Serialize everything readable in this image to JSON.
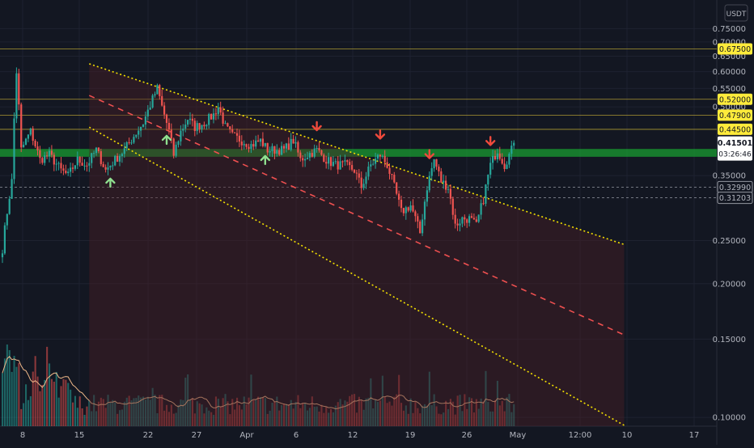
{
  "currency_label": "USDT",
  "colors": {
    "background": "#131722",
    "grid": "#1e2230",
    "axis_text": "#b2b5be",
    "level_line": "#c9b036",
    "level_tag": "#ffeb3b",
    "support_zone": "#1a9c32",
    "support_tag": "#5fd45f",
    "bull": "#26a69a",
    "bear": "#ef5350",
    "channel_fill": "#4a1e25",
    "channel_line": "#f5e200",
    "mid_line": "#f05050",
    "arrow_up": "#8fe08f",
    "arrow_down": "#f04a3c",
    "volume_ma": "#f0b98a",
    "price_tag": "#ffffff"
  },
  "chart_data": {
    "type": "candlestick",
    "y_axis": {
      "ticks": [
        "0.75000",
        "0.70000",
        "0.65000",
        "0.60000",
        "0.55000",
        "0.50000",
        "0.35000",
        "0.25000",
        "0.20000",
        "0.15000",
        "0.10000"
      ],
      "scale": "log",
      "range": [
        0.098,
        0.81
      ]
    },
    "x_axis": {
      "ticks": [
        "8",
        "15",
        "22",
        "27",
        "Apr",
        "6",
        "12",
        "19",
        "26",
        "May",
        "12:00",
        "10",
        "17"
      ]
    },
    "horizontal_levels": [
      {
        "label": "0.67500",
        "value": 0.675
      },
      {
        "label": "0.52000",
        "value": 0.52
      },
      {
        "label": "0.47900",
        "value": 0.479
      },
      {
        "label": "0.44500",
        "value": 0.445
      }
    ],
    "dashed_levels": [
      {
        "label": "0.32990",
        "value": 0.3299
      },
      {
        "label": "0.31203",
        "value": 0.31203
      }
    ],
    "support_zone": {
      "label": "0.39687",
      "value": 0.39687,
      "upper": 0.402,
      "lower": 0.386
    },
    "current_price": {
      "label": "0.41501",
      "value": 0.41501,
      "countdown": "03:26:46"
    },
    "close_path": [
      [
        0,
        0.24
      ],
      [
        4,
        0.34
      ],
      [
        6,
        0.6
      ],
      [
        8,
        0.4
      ],
      [
        12,
        0.44
      ],
      [
        16,
        0.38
      ],
      [
        20,
        0.39
      ],
      [
        25,
        0.36
      ],
      [
        28,
        0.35
      ],
      [
        32,
        0.38
      ],
      [
        36,
        0.37
      ],
      [
        40,
        0.4
      ],
      [
        44,
        0.36
      ],
      [
        48,
        0.38
      ],
      [
        52,
        0.4
      ],
      [
        56,
        0.43
      ],
      [
        60,
        0.46
      ],
      [
        64,
        0.52
      ],
      [
        66,
        0.55
      ],
      [
        68,
        0.5
      ],
      [
        71,
        0.44
      ],
      [
        73,
        0.39
      ],
      [
        76,
        0.44
      ],
      [
        79,
        0.47
      ],
      [
        82,
        0.45
      ],
      [
        86,
        0.46
      ],
      [
        90,
        0.48
      ],
      [
        92,
        0.5
      ],
      [
        95,
        0.45
      ],
      [
        98,
        0.43
      ],
      [
        102,
        0.42
      ],
      [
        106,
        0.41
      ],
      [
        110,
        0.42
      ],
      [
        113,
        0.4
      ],
      [
        116,
        0.4
      ],
      [
        120,
        0.4
      ],
      [
        124,
        0.42
      ],
      [
        127,
        0.38
      ],
      [
        130,
        0.39
      ],
      [
        134,
        0.4
      ],
      [
        138,
        0.38
      ],
      [
        142,
        0.37
      ],
      [
        146,
        0.37
      ],
      [
        150,
        0.36
      ],
      [
        153,
        0.33
      ],
      [
        157,
        0.37
      ],
      [
        161,
        0.39
      ],
      [
        164,
        0.37
      ],
      [
        167,
        0.33
      ],
      [
        170,
        0.29
      ],
      [
        174,
        0.3
      ],
      [
        178,
        0.26
      ],
      [
        181,
        0.33
      ],
      [
        184,
        0.38
      ],
      [
        187,
        0.34
      ],
      [
        190,
        0.33
      ],
      [
        193,
        0.27
      ],
      [
        196,
        0.28
      ],
      [
        199,
        0.28
      ],
      [
        202,
        0.27
      ],
      [
        205,
        0.31
      ],
      [
        208,
        0.37
      ],
      [
        211,
        0.4
      ],
      [
        214,
        0.37
      ],
      [
        218,
        0.41
      ]
    ],
    "arrows": [
      {
        "direction": "up",
        "bar": 46
      },
      {
        "direction": "up",
        "bar": 70
      },
      {
        "direction": "up",
        "bar": 112
      },
      {
        "direction": "down",
        "bar": 134
      },
      {
        "direction": "down",
        "bar": 161
      },
      {
        "direction": "down",
        "bar": 182
      },
      {
        "direction": "down",
        "bar": 208
      }
    ],
    "channel": {
      "upper": [
        [
          37,
          0.625
        ],
        [
          265,
          0.245
        ]
      ],
      "lower": [
        [
          37,
          0.45
        ],
        [
          265,
          0.096
        ]
      ],
      "start_bar": 37,
      "end_bar": 265
    }
  }
}
